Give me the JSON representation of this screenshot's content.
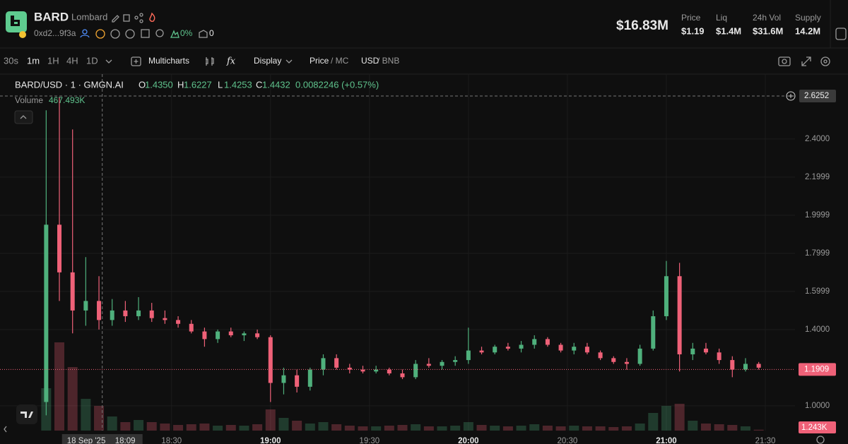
{
  "header": {
    "name": "BARD",
    "tag": "Lombard",
    "address": "0xd2...9f3a",
    "holders_pct": "0%",
    "count": "0",
    "market_cap": "$16.83M",
    "stats": [
      {
        "label": "Price",
        "value": "$1.19"
      },
      {
        "label": "Liq",
        "value": "$1.4M"
      },
      {
        "label": "24h Vol",
        "value": "$31.6M"
      },
      {
        "label": "Supply",
        "value": "14.2M"
      }
    ]
  },
  "toolbar": {
    "intervals": [
      "30s",
      "1m",
      "1H",
      "4H",
      "1D"
    ],
    "active_interval": "1m",
    "multicharts": "Multicharts",
    "fx": "fx",
    "display": "Display",
    "price": "Price",
    "mc": "/ MC",
    "usd": "USD",
    "bnb": "/ BNB"
  },
  "legend": {
    "symbol": "BARD/USD · 1 · GMGN.AI",
    "ohlc": [
      {
        "key": "O",
        "value": "1.4350"
      },
      {
        "key": "H",
        "value": "1.6227"
      },
      {
        "key": "L",
        "value": "1.4253"
      },
      {
        "key": "C",
        "value": "1.4432"
      }
    ],
    "change": "0.0082246 (+0.57%)",
    "volume_label": "Volume",
    "volume_value": "467.493K"
  },
  "chart": {
    "type": "candlestick",
    "up_color": "#4fb07c",
    "down_color": "#ef6178",
    "x": [
      "17:52",
      "17:56",
      "18:00",
      "18:04",
      "18:08",
      "18:12",
      "18:16",
      "18:20",
      "18:24",
      "18:28",
      "18:32",
      "18:36",
      "18:40",
      "18:44",
      "18:48",
      "18:52",
      "18:56",
      "19:00",
      "19:04",
      "19:08",
      "19:12",
      "19:16",
      "19:20",
      "19:24",
      "19:28",
      "19:32",
      "19:36",
      "19:40",
      "19:44",
      "19:48",
      "19:52",
      "19:56",
      "20:00",
      "20:04",
      "20:08",
      "20:12",
      "20:16",
      "20:20",
      "20:24",
      "20:28",
      "20:32",
      "20:36",
      "20:40",
      "20:44",
      "20:48",
      "20:52",
      "20:56",
      "21:00",
      "21:04",
      "21:08",
      "21:12",
      "21:16",
      "21:20",
      "21:24",
      "21:28"
    ],
    "open": [
      1.02,
      1.95,
      1.7,
      1.5,
      1.55,
      1.45,
      1.5,
      1.47,
      1.5,
      1.46,
      1.45,
      1.43,
      1.39,
      1.35,
      1.39,
      1.37,
      1.38,
      1.36,
      1.12,
      1.16,
      1.1,
      1.19,
      1.25,
      1.2,
      1.19,
      1.18,
      1.19,
      1.17,
      1.15,
      1.22,
      1.21,
      1.23,
      1.24,
      1.29,
      1.28,
      1.31,
      1.3,
      1.32,
      1.35,
      1.32,
      1.29,
      1.31,
      1.28,
      1.25,
      1.23,
      1.22,
      1.3,
      1.47,
      1.68,
      1.27,
      1.3,
      1.28,
      1.24,
      1.19,
      1.22
    ],
    "high": [
      2.55,
      2.62,
      2.45,
      1.78,
      1.68,
      1.56,
      1.55,
      1.57,
      1.54,
      1.5,
      1.47,
      1.45,
      1.41,
      1.4,
      1.41,
      1.39,
      1.4,
      1.37,
      1.2,
      1.19,
      1.2,
      1.27,
      1.27,
      1.22,
      1.21,
      1.21,
      1.2,
      1.19,
      1.24,
      1.25,
      1.24,
      1.26,
      1.41,
      1.31,
      1.32,
      1.33,
      1.34,
      1.37,
      1.36,
      1.33,
      1.33,
      1.33,
      1.29,
      1.26,
      1.25,
      1.32,
      1.5,
      1.76,
      1.75,
      1.33,
      1.33,
      1.3,
      1.26,
      1.25,
      1.23
    ],
    "low": [
      0.95,
      1.55,
      1.38,
      1.42,
      1.4,
      1.42,
      1.44,
      1.45,
      1.44,
      1.43,
      1.41,
      1.38,
      1.31,
      1.33,
      1.36,
      1.34,
      1.35,
      1.02,
      1.06,
      1.07,
      1.08,
      1.16,
      1.19,
      1.17,
      1.17,
      1.17,
      1.16,
      1.14,
      1.14,
      1.2,
      1.19,
      1.21,
      1.22,
      1.27,
      1.27,
      1.29,
      1.28,
      1.3,
      1.31,
      1.28,
      1.27,
      1.27,
      1.24,
      1.22,
      1.19,
      1.21,
      1.29,
      1.45,
      1.18,
      1.24,
      1.27,
      1.22,
      1.15,
      1.18,
      1.19
    ],
    "close": [
      1.95,
      1.7,
      1.5,
      1.55,
      1.45,
      1.5,
      1.47,
      1.5,
      1.46,
      1.45,
      1.43,
      1.39,
      1.35,
      1.39,
      1.37,
      1.38,
      1.36,
      1.12,
      1.16,
      1.1,
      1.19,
      1.25,
      1.2,
      1.19,
      1.18,
      1.19,
      1.17,
      1.15,
      1.22,
      1.21,
      1.23,
      1.24,
      1.29,
      1.28,
      1.31,
      1.3,
      1.32,
      1.35,
      1.32,
      1.29,
      1.31,
      1.28,
      1.25,
      1.23,
      1.22,
      1.3,
      1.47,
      1.68,
      1.27,
      1.3,
      1.28,
      1.24,
      1.19,
      1.22,
      1.2
    ],
    "volume": [
      60,
      125,
      90,
      45,
      35,
      20,
      12,
      15,
      12,
      10,
      8,
      9,
      10,
      7,
      8,
      7,
      9,
      30,
      18,
      14,
      10,
      12,
      9,
      7,
      6,
      6,
      7,
      8,
      9,
      6,
      6,
      7,
      12,
      8,
      7,
      6,
      7,
      9,
      7,
      6,
      7,
      6,
      6,
      5,
      6,
      10,
      25,
      35,
      38,
      14,
      10,
      9,
      8,
      6,
      1.243
    ],
    "value_labels": {
      "volume_last": "1.243K"
    },
    "xlim": [
      "17:38",
      "21:39"
    ],
    "ylim": [
      0.87,
      2.74
    ],
    "yticks": [
      {
        "value": 1,
        "label": "1.0000"
      },
      {
        "value": 1.4,
        "label": "1.4000"
      },
      1.5999,
      1.7999,
      1.9999,
      2.1999,
      {
        "value": 2.4,
        "label": "2.4000"
      }
    ],
    "xticks": [
      "18:30",
      "19:00",
      "19:30",
      "20:00",
      "20:30",
      "21:00",
      "21:30"
    ],
    "last_price": {
      "value": 1.1909,
      "label": "1.1909"
    },
    "crosshair": {
      "price": {
        "value": 2.6252,
        "label": "2.6252"
      },
      "date": "18 Sep '25",
      "time": "18:09"
    },
    "grid": true
  }
}
